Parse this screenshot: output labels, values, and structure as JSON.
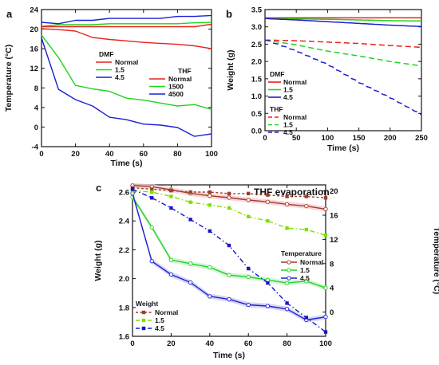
{
  "colors": {
    "red": "#e8211c",
    "green": "#1fd41f",
    "blue": "#1c1fd4",
    "brown": "#9a3f2a",
    "lightgreen": "#7ee000",
    "navy": "#1616c8",
    "band_red": "#f8c8cf",
    "band_green": "#c9f0ce",
    "band_blue": "#c8c8f0"
  },
  "chart_data": [
    {
      "type": "line",
      "panel_label": "a",
      "xlabel": "Time (s)",
      "ylabel": "Temperature (°C)",
      "xlim": [
        0,
        100
      ],
      "ylim": [
        -4,
        24
      ],
      "xticks": [
        0,
        20,
        40,
        60,
        80,
        100
      ],
      "yticks": [
        -4,
        0,
        4,
        8,
        12,
        16,
        20,
        24
      ],
      "legend_groups": [
        {
          "title": "DMF",
          "position": "center-left",
          "entries": [
            "Normal",
            "1.5",
            "4.5"
          ]
        },
        {
          "title": "THF",
          "position": "center-right",
          "entries": [
            "Normal",
            "1500",
            "4500"
          ]
        }
      ],
      "series": [
        {
          "name": "Normal",
          "group": "DMF",
          "color": "red",
          "x": [
            0,
            10,
            20,
            30,
            40,
            50,
            60,
            70,
            80,
            90,
            100
          ],
          "y": [
            20.1,
            19.9,
            19.6,
            18.3,
            17.9,
            17.6,
            17.3,
            17.1,
            16.9,
            16.6,
            16.0
          ]
        },
        {
          "name": "1.5",
          "group": "DMF",
          "color": "green",
          "x": [
            0,
            10,
            20,
            30,
            40,
            50,
            60,
            70,
            80,
            90,
            100
          ],
          "y": [
            20.6,
            20.9,
            20.9,
            20.9,
            21.1,
            21.1,
            21.1,
            21.1,
            21.1,
            21.3,
            21.4
          ]
        },
        {
          "name": "4.5",
          "group": "DMF",
          "color": "blue",
          "x": [
            0,
            10,
            20,
            30,
            40,
            50,
            60,
            70,
            80,
            90,
            100
          ],
          "y": [
            21.4,
            21.1,
            21.8,
            21.8,
            22.2,
            22.2,
            22.2,
            22.2,
            22.6,
            22.6,
            22.8
          ]
        },
        {
          "name": "Normal",
          "group": "THF",
          "color": "red",
          "x": [
            0,
            10,
            20,
            30,
            40,
            50,
            60,
            70,
            80,
            90,
            100
          ],
          "y": [
            20.5,
            20.5,
            20.5,
            20.5,
            20.5,
            20.5,
            20.5,
            20.5,
            20.5,
            20.5,
            21.0
          ]
        },
        {
          "name": "1500",
          "group": "THF",
          "color": "green",
          "x": [
            0,
            10,
            20,
            30,
            40,
            50,
            60,
            70,
            80,
            90,
            100
          ],
          "y": [
            18.8,
            14.2,
            8.5,
            7.8,
            7.3,
            5.9,
            5.5,
            4.9,
            4.3,
            4.6,
            3.6
          ]
        },
        {
          "name": "4500",
          "group": "THF",
          "color": "blue",
          "x": [
            0,
            10,
            20,
            30,
            40,
            50,
            60,
            70,
            80,
            90,
            100
          ],
          "y": [
            18.2,
            7.7,
            5.6,
            4.3,
            2.0,
            1.5,
            0.6,
            0.4,
            -0.1,
            -1.9,
            -1.4
          ]
        }
      ]
    },
    {
      "type": "line",
      "panel_label": "b",
      "xlabel": "Time (s)",
      "ylabel": "Weight (g)",
      "xlim": [
        0,
        250
      ],
      "ylim": [
        0.0,
        3.5
      ],
      "xticks": [
        0,
        50,
        100,
        150,
        200,
        250
      ],
      "yticks": [
        0.0,
        0.5,
        1.0,
        1.5,
        2.0,
        2.5,
        3.0,
        3.5
      ],
      "legend_groups": [
        {
          "title": "DMF",
          "position": "lower-left",
          "entries": [
            "Normal",
            "1.5",
            "4.5"
          ]
        },
        {
          "title": "THF",
          "position": "lower-left",
          "entries": [
            "Normal",
            "1.5",
            "4.5"
          ]
        }
      ],
      "series": [
        {
          "name": "Normal",
          "group": "DMF",
          "color": "red",
          "dash": "solid",
          "x": [
            0,
            50,
            100,
            150,
            200,
            250
          ],
          "y": [
            3.26,
            3.26,
            3.26,
            3.26,
            3.26,
            3.26
          ]
        },
        {
          "name": "1.5",
          "group": "DMF",
          "color": "green",
          "dash": "solid",
          "x": [
            0,
            50,
            100,
            150,
            200,
            250
          ],
          "y": [
            3.24,
            3.23,
            3.22,
            3.2,
            3.18,
            3.17
          ]
        },
        {
          "name": "4.5",
          "group": "DMF",
          "color": "blue",
          "dash": "solid",
          "x": [
            0,
            50,
            100,
            150,
            200,
            250
          ],
          "y": [
            3.24,
            3.2,
            3.15,
            3.1,
            3.05,
            3.01
          ]
        },
        {
          "name": "Normal",
          "group": "THF",
          "color": "red",
          "dash": "dashed",
          "x": [
            0,
            50,
            100,
            150,
            200,
            250
          ],
          "y": [
            2.62,
            2.6,
            2.56,
            2.52,
            2.46,
            2.41
          ]
        },
        {
          "name": "1.5",
          "group": "THF",
          "color": "green",
          "dash": "dashed",
          "x": [
            0,
            50,
            100,
            150,
            200,
            250
          ],
          "y": [
            2.62,
            2.48,
            2.3,
            2.16,
            2.0,
            1.87
          ]
        },
        {
          "name": "4.5",
          "group": "THF",
          "color": "blue",
          "dash": "dashed",
          "x": [
            0,
            50,
            100,
            150,
            200,
            250
          ],
          "y": [
            2.63,
            2.3,
            1.91,
            1.4,
            0.96,
            0.47
          ]
        }
      ]
    },
    {
      "type": "line",
      "panel_label": "c",
      "title": "THF evaporation",
      "xlabel": "Time (s)",
      "ylabel": "Weight (g)",
      "y2label": "Temperature (°C)",
      "xlim": [
        0,
        100
      ],
      "ylim": [
        1.6,
        2.65
      ],
      "y2lim": [
        -4,
        21
      ],
      "xticks": [
        0,
        20,
        40,
        60,
        80,
        100
      ],
      "yticks": [
        1.6,
        1.8,
        2.0,
        2.2,
        2.4,
        2.6
      ],
      "y2ticks": [
        0,
        4,
        8,
        12,
        16,
        20
      ],
      "legend_groups": [
        {
          "title": "Temperature",
          "position": "center-right",
          "entries": [
            "Normal",
            "1.5",
            "4.5"
          ]
        },
        {
          "title": "Weight",
          "position": "lower-left",
          "entries": [
            "Normal",
            "1.5",
            "4.5"
          ]
        }
      ],
      "series": [
        {
          "name": "Normal",
          "group": "Temperature",
          "axis": "right",
          "color": "brown",
          "marker": "open-circle",
          "x": [
            0,
            10,
            20,
            30,
            40,
            50,
            60,
            70,
            80,
            90,
            100
          ],
          "y": [
            20.9,
            20.7,
            20.2,
            19.6,
            19.2,
            18.9,
            18.5,
            18.2,
            17.8,
            17.5,
            17.0
          ]
        },
        {
          "name": "1.5",
          "group": "Temperature",
          "axis": "right",
          "color": "green",
          "marker": "open-circle",
          "x": [
            0,
            10,
            20,
            30,
            40,
            50,
            60,
            70,
            80,
            90,
            100
          ],
          "y": [
            19.0,
            14.0,
            8.6,
            8.0,
            7.4,
            6.1,
            5.8,
            5.3,
            4.8,
            5.1,
            4.0
          ]
        },
        {
          "name": "4.5",
          "group": "Temperature",
          "axis": "right",
          "color": "blue",
          "marker": "open-circle",
          "x": [
            0,
            10,
            20,
            30,
            40,
            50,
            60,
            70,
            80,
            90,
            100
          ],
          "y": [
            19.6,
            8.4,
            6.2,
            4.9,
            2.6,
            2.1,
            1.2,
            1.0,
            0.5,
            -1.3,
            -0.8
          ]
        },
        {
          "name": "Normal",
          "group": "Weight",
          "axis": "left",
          "color": "brown",
          "marker": "filled-square",
          "dash": "dashed",
          "x": [
            0,
            10,
            20,
            30,
            40,
            50,
            60,
            70,
            80,
            90,
            100
          ],
          "y": [
            2.63,
            2.62,
            2.61,
            2.6,
            2.6,
            2.59,
            2.59,
            2.58,
            2.57,
            2.57,
            2.56
          ]
        },
        {
          "name": "1.5",
          "group": "Weight",
          "axis": "left",
          "color": "lightgreen",
          "marker": "filled-square",
          "dash": "dashed",
          "x": [
            0,
            10,
            20,
            30,
            40,
            50,
            60,
            70,
            80,
            90,
            100
          ],
          "y": [
            2.61,
            2.6,
            2.57,
            2.53,
            2.51,
            2.49,
            2.43,
            2.4,
            2.35,
            2.34,
            2.3
          ]
        },
        {
          "name": "4.5",
          "group": "Weight",
          "axis": "left",
          "color": "navy",
          "marker": "filled-square",
          "dash": "dashed",
          "x": [
            0,
            10,
            20,
            30,
            40,
            50,
            60,
            70,
            80,
            90,
            100
          ],
          "y": [
            2.62,
            2.56,
            2.49,
            2.41,
            2.33,
            2.23,
            2.07,
            1.97,
            1.83,
            1.73,
            1.63
          ]
        }
      ]
    }
  ]
}
